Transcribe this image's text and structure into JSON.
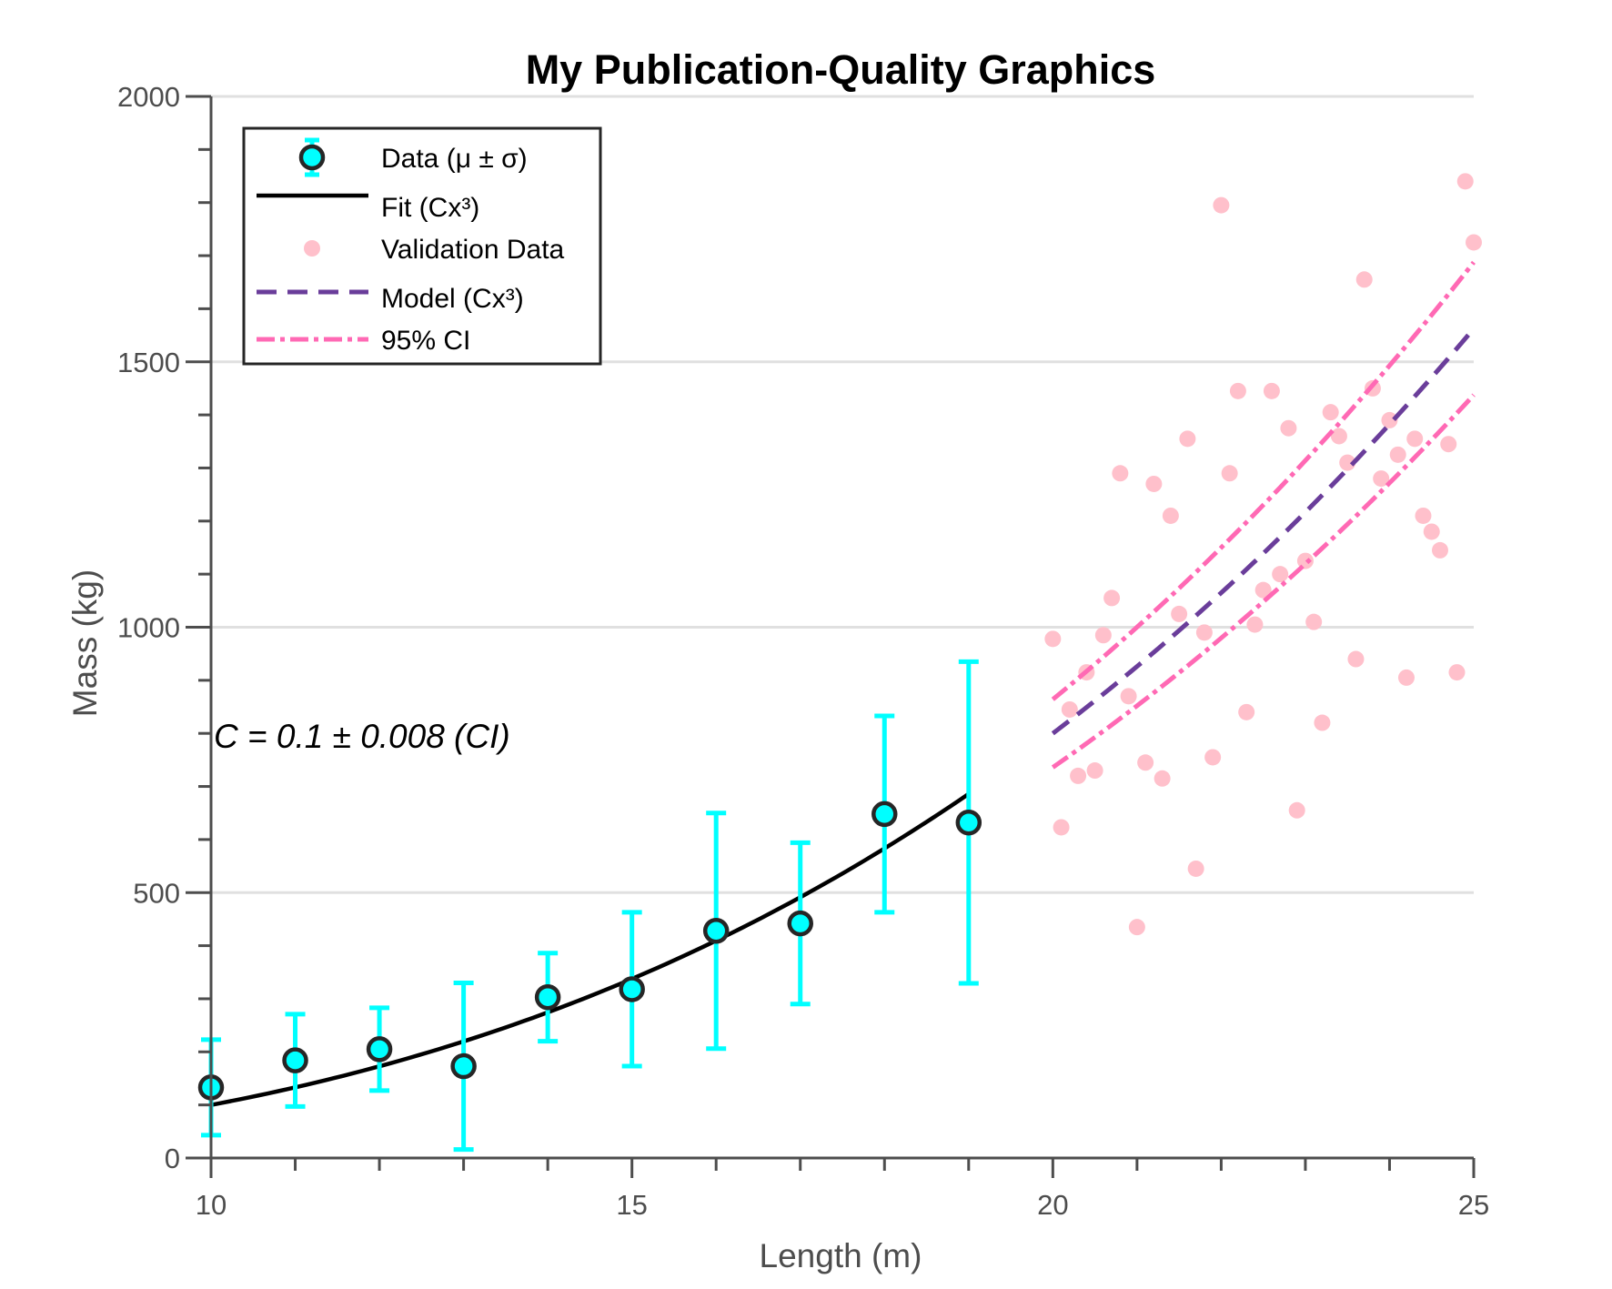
{
  "chart_data": {
    "type": "scatter",
    "title": "My Publication-Quality Graphics",
    "xlabel": "Length (m)",
    "ylabel": "Mass (kg)",
    "xlim": [
      10,
      25
    ],
    "ylim": [
      0,
      2000
    ],
    "x_ticks": [
      "10",
      "15",
      "20",
      "25"
    ],
    "y_ticks": [
      "0",
      "500",
      "1000",
      "1500",
      "2000"
    ],
    "grid": "horizontal",
    "legend_position": "top-left",
    "annotation": "C = 0.1 ± 0.008 (CI)",
    "colors": {
      "data_face": "#00ffff",
      "data_edge": "#262626",
      "errorbar": "#00ffff",
      "fit": "#000000",
      "validation": "#ffc0cb",
      "model": "#6a3d9a",
      "ci": "#ff69b4",
      "grid": "#e0e0e0",
      "axis": "#4d4d4d"
    },
    "legend": [
      {
        "name": "Data (μ ± σ)",
        "marker": "errorbar-circle"
      },
      {
        "name": "Fit (Cx³)",
        "marker": "solid-line"
      },
      {
        "name": "Validation Data",
        "marker": "dot"
      },
      {
        "name": "Model (Cx³)",
        "marker": "dashed-line"
      },
      {
        "name": "95% CI",
        "marker": "dashdot-line"
      }
    ],
    "series": [
      {
        "name": "Data (μ ± σ)",
        "kind": "errorbar",
        "x": [
          10,
          11,
          12,
          13,
          14,
          15,
          16,
          17,
          18,
          19
        ],
        "y": [
          133,
          184,
          205,
          173,
          303,
          318,
          428,
          442,
          648,
          632
        ],
        "err": [
          90,
          87,
          78,
          157,
          83,
          145,
          222,
          152,
          185,
          303
        ]
      },
      {
        "name": "Fit (Cx³)",
        "kind": "curve",
        "coef": 0.1,
        "x_range": [
          10,
          19
        ]
      },
      {
        "name": "Validation Data",
        "kind": "points",
        "x": [
          20.0,
          20.1,
          20.2,
          20.3,
          20.4,
          20.5,
          20.6,
          20.7,
          20.8,
          20.9,
          21.0,
          21.1,
          21.2,
          21.3,
          21.4,
          21.5,
          21.6,
          21.7,
          21.8,
          21.9,
          22.0,
          22.1,
          22.2,
          22.3,
          22.4,
          22.5,
          22.6,
          22.7,
          22.8,
          22.9,
          23.0,
          23.1,
          23.2,
          23.3,
          23.4,
          23.5,
          23.6,
          23.7,
          23.8,
          23.9,
          24.0,
          24.1,
          24.2,
          24.3,
          24.4,
          24.5,
          24.6,
          24.7,
          24.8,
          24.9,
          25.0
        ],
        "y": [
          978,
          623,
          845,
          720,
          915,
          730,
          985,
          1055,
          1290,
          870,
          435,
          745,
          1270,
          715,
          1210,
          1025,
          1355,
          545,
          990,
          755,
          1795,
          1290,
          1445,
          840,
          1005,
          1070,
          1445,
          1100,
          1375,
          655,
          1125,
          1010,
          820,
          1405,
          1360,
          1310,
          940,
          1655,
          1450,
          1280,
          1390,
          1325,
          905,
          1355,
          1210,
          1180,
          1145,
          1345,
          915,
          1840,
          1725
        ]
      },
      {
        "name": "Model (Cx³)",
        "kind": "curve",
        "coef": 0.1,
        "x_range": [
          20,
          25
        ]
      },
      {
        "name": "95% CI",
        "kind": "band",
        "upper_coef": 0.108,
        "lower_coef": 0.092,
        "x_range": [
          20,
          25
        ]
      }
    ]
  }
}
